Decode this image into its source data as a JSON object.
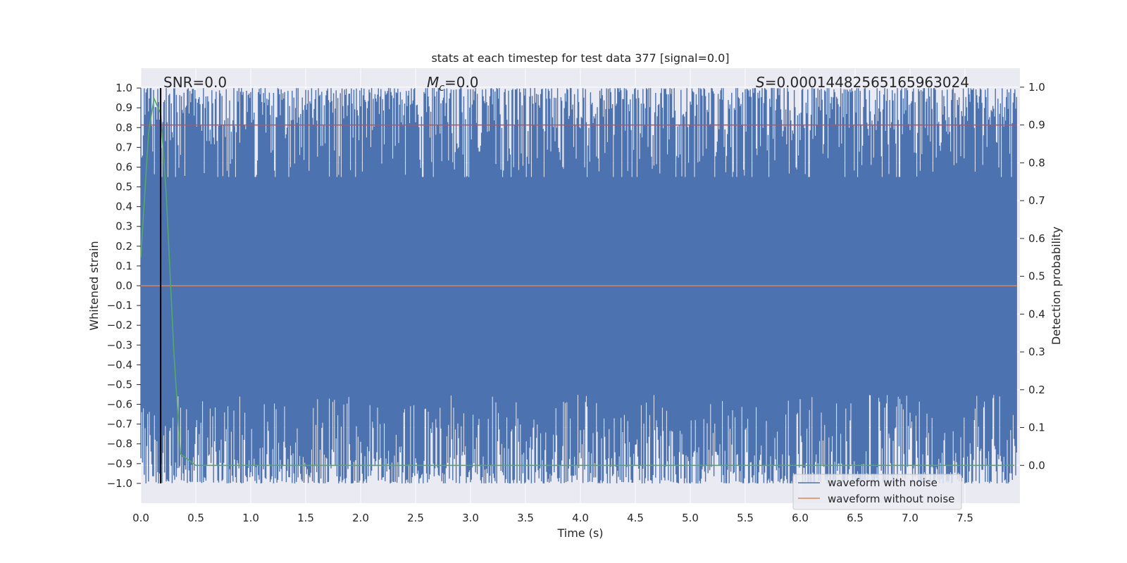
{
  "chart_data": {
    "type": "line",
    "title": "stats at each timestep for test data 377 [signal=0.0]",
    "xlabel": "Time (s)",
    "ylabel": "Whitened strain",
    "y2label": "Detection probability",
    "xlim": [
      0.0,
      8.0
    ],
    "ylim": [
      -1.1,
      1.1
    ],
    "y2lim": [
      -0.1,
      1.05
    ],
    "x_ticks": [
      "0.0",
      "0.5",
      "1.0",
      "1.5",
      "2.0",
      "2.5",
      "3.0",
      "3.5",
      "4.0",
      "4.5",
      "5.0",
      "5.5",
      "6.0",
      "6.5",
      "7.0",
      "7.5"
    ],
    "y_ticks": [
      "1.0",
      "0.9",
      "0.8",
      "0.7",
      "0.6",
      "0.5",
      "0.4",
      "0.3",
      "0.2",
      "0.1",
      "0.0",
      "−0.1",
      "−0.2",
      "−0.3",
      "−0.4",
      "−0.5",
      "−0.6",
      "−0.7",
      "−0.8",
      "−0.9",
      "−1.0"
    ],
    "y2_ticks": [
      "1.0",
      "0.9",
      "0.8",
      "0.7",
      "0.6",
      "0.5",
      "0.4",
      "0.3",
      "0.2",
      "0.1",
      "0.0"
    ],
    "annotations": {
      "snr": "SNR=0.0",
      "mc_symbol": "M",
      "mc_sub": "c",
      "mc_value": "=0.0",
      "s_symbol": "S",
      "s_value": "=0.00014482565165963024"
    },
    "series": [
      {
        "name": "waveform with noise",
        "color": "#4c72b0",
        "description": "noise in [-1, 1]"
      },
      {
        "name": "waveform without noise",
        "color": "#dd8452",
        "values_constant": 0.0
      },
      {
        "name": "detection probability",
        "color": "#55a868",
        "axis": "right",
        "x": [
          0.0,
          0.07,
          0.12,
          0.18,
          0.23,
          0.3,
          0.36,
          0.5,
          1.0,
          2.0,
          3.0,
          4.0,
          5.0,
          6.0,
          7.0,
          7.95
        ],
        "values": [
          0.55,
          0.88,
          0.97,
          0.93,
          0.72,
          0.3,
          0.03,
          0.0,
          0.0,
          0.0,
          0.0,
          0.0,
          0.0,
          0.0,
          0.0,
          0.0
        ]
      },
      {
        "name": "threshold",
        "color": "#c44e52",
        "axis": "right",
        "values_constant": 0.9
      },
      {
        "name": "marker",
        "color": "#000000",
        "x_constant": 0.18
      }
    ],
    "legend": {
      "position": "bottom-right",
      "entries": [
        "waveform with noise",
        "waveform without noise"
      ]
    }
  }
}
